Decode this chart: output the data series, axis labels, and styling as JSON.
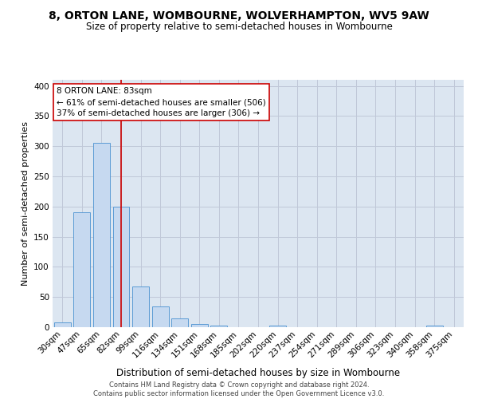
{
  "title": "8, ORTON LANE, WOMBOURNE, WOLVERHAMPTON, WV5 9AW",
  "subtitle": "Size of property relative to semi-detached houses in Wombourne",
  "xlabel": "Distribution of semi-detached houses by size in Wombourne",
  "ylabel": "Number of semi-detached properties",
  "footer_line1": "Contains HM Land Registry data © Crown copyright and database right 2024.",
  "footer_line2": "Contains public sector information licensed under the Open Government Licence v3.0.",
  "bar_labels": [
    "30sqm",
    "47sqm",
    "65sqm",
    "82sqm",
    "99sqm",
    "116sqm",
    "134sqm",
    "151sqm",
    "168sqm",
    "185sqm",
    "202sqm",
    "220sqm",
    "237sqm",
    "254sqm",
    "271sqm",
    "289sqm",
    "306sqm",
    "323sqm",
    "340sqm",
    "358sqm",
    "375sqm"
  ],
  "bar_values": [
    8,
    190,
    305,
    200,
    68,
    35,
    14,
    5,
    3,
    0,
    0,
    3,
    0,
    0,
    0,
    0,
    0,
    0,
    0,
    3,
    0
  ],
  "bar_color": "#c6d9f0",
  "bar_edge_color": "#5b9bd5",
  "vline_color": "#cc0000",
  "vline_index": 3,
  "annotation_text_line1": "8 ORTON LANE: 83sqm",
  "annotation_text_line2": "← 61% of semi-detached houses are smaller (506)",
  "annotation_text_line3": "37% of semi-detached houses are larger (306) →",
  "annotation_box_color": "#ffffff",
  "annotation_box_edge": "#cc0000",
  "ylim": [
    0,
    410
  ],
  "yticks": [
    0,
    50,
    100,
    150,
    200,
    250,
    300,
    350,
    400
  ],
  "grid_color": "#c0c8d8",
  "bg_color": "#dce6f1",
  "title_fontsize": 10,
  "subtitle_fontsize": 8.5,
  "ylabel_fontsize": 8,
  "xlabel_fontsize": 8.5,
  "annotation_fontsize": 7.5,
  "footer_fontsize": 6,
  "tick_fontsize": 7.5
}
